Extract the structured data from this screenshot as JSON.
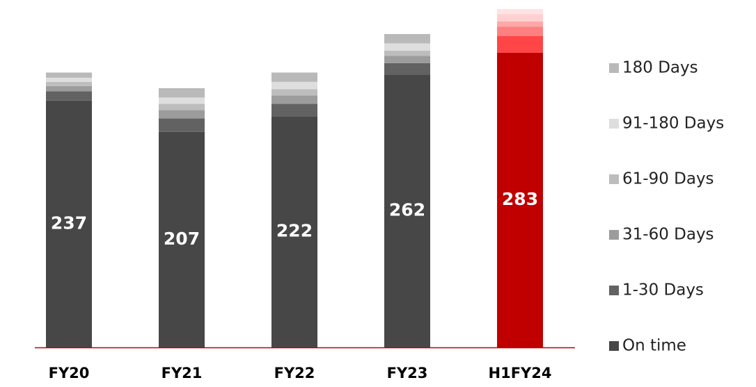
{
  "chart_data": {
    "type": "stacked_bar",
    "categories": [
      "FY20",
      "FY21",
      "FY22",
      "FY23",
      "H1FY24"
    ],
    "series": [
      {
        "name": "On time",
        "color": "#474747",
        "colors": [
          "#474747",
          "#474747",
          "#474747",
          "#474747",
          "#c00000"
        ],
        "values": [
          237,
          207,
          222,
          262,
          283
        ]
      },
      {
        "name": "1-30 Days",
        "color": "#626262",
        "colors": [
          "#626262",
          "#626262",
          "#626262",
          "#626262",
          "#ff4545"
        ],
        "values": [
          9,
          13,
          12,
          11,
          16
        ]
      },
      {
        "name": "31-60 Days",
        "color": "#9c9c9c",
        "colors": [
          "#9c9c9c",
          "#9c9c9c",
          "#9c9c9c",
          "#9c9c9c",
          "#ff8080"
        ],
        "values": [
          5,
          8,
          8,
          7,
          9
        ]
      },
      {
        "name": "61-90 Days",
        "color": "#bdbdbd",
        "colors": [
          "#bdbdbd",
          "#bdbdbd",
          "#bdbdbd",
          "#bdbdbd",
          "#ffa8a8"
        ],
        "values": [
          4,
          6,
          6,
          5,
          5
        ]
      },
      {
        "name": "91-180 Days",
        "color": "#dedede",
        "colors": [
          "#dedede",
          "#dedede",
          "#dedede",
          "#dedede",
          "#ffd0d0"
        ],
        "values": [
          4,
          6,
          7,
          7,
          7
        ]
      },
      {
        "name": "180 Days",
        "color": "#b9b9b9",
        "colors": [
          "#b9b9b9",
          "#b9b9b9",
          "#b9b9b9",
          "#b9b9b9",
          "#ffe2e2"
        ],
        "values": [
          5,
          9,
          9,
          9,
          5
        ]
      }
    ],
    "label_series": 0,
    "axis_color": "#c00000"
  }
}
